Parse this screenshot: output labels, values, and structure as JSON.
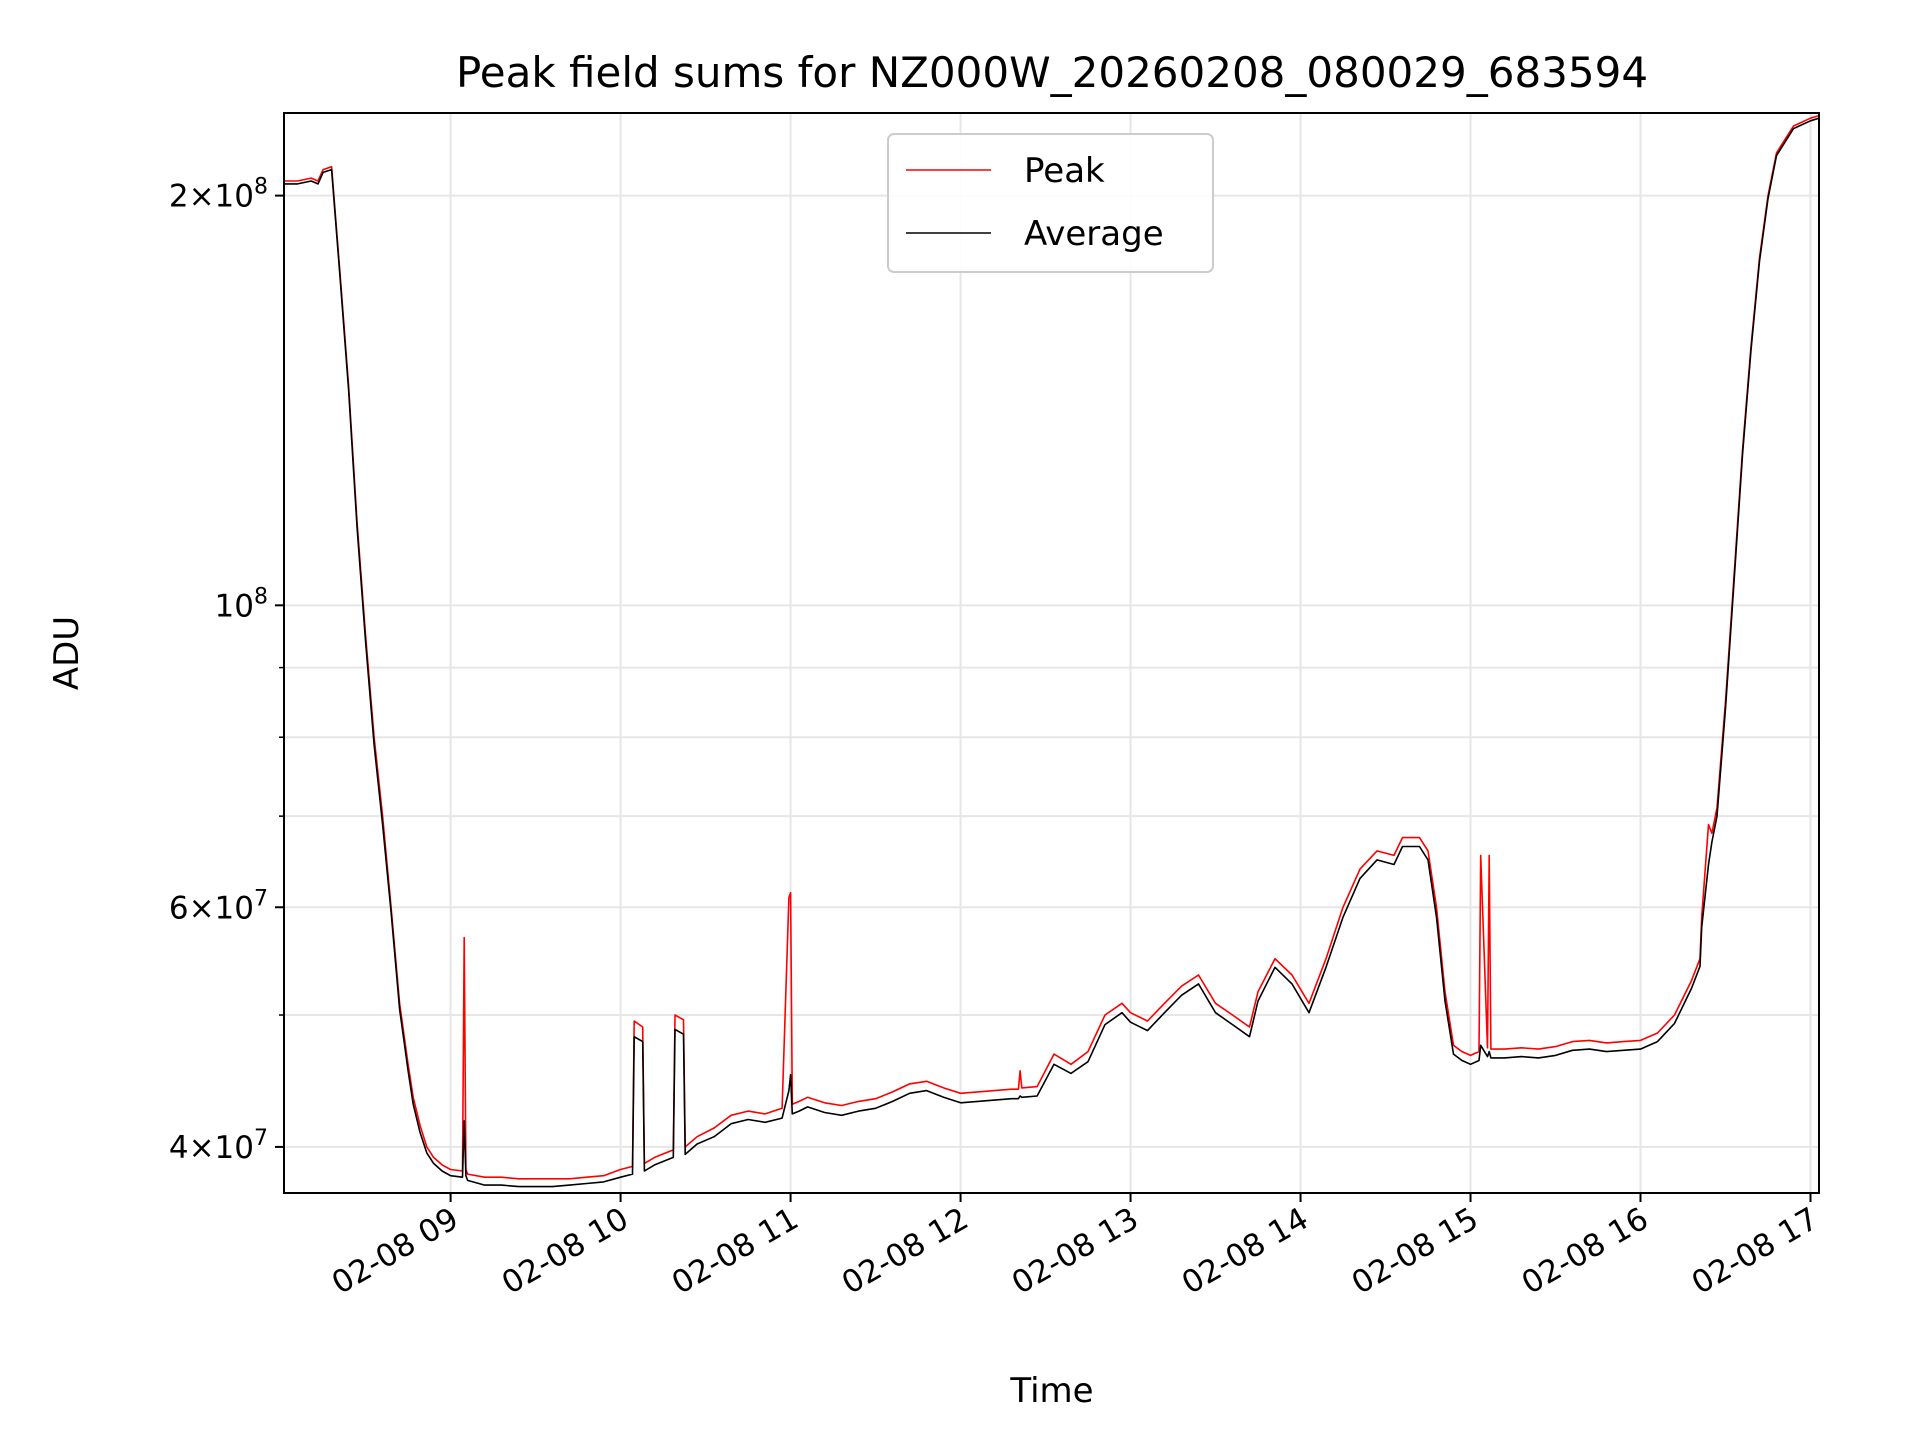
{
  "chart_data": {
    "type": "line",
    "title": "Peak field sums for NZ000W_20260208_080029_683594",
    "xlabel": "Time",
    "ylabel": "ADU",
    "yscale": "log",
    "ylim": [
      37000000,
      230000000
    ],
    "xlim": [
      8.02,
      17.05
    ],
    "x_unit": "hours since 2026-02-08 00:00",
    "x_ticks": [
      {
        "value": 9,
        "label": "02-08 09"
      },
      {
        "value": 10,
        "label": "02-08 10"
      },
      {
        "value": 11,
        "label": "02-08 11"
      },
      {
        "value": 12,
        "label": "02-08 12"
      },
      {
        "value": 13,
        "label": "02-08 13"
      },
      {
        "value": 14,
        "label": "02-08 14"
      },
      {
        "value": 15,
        "label": "02-08 15"
      },
      {
        "value": 16,
        "label": "02-08 16"
      },
      {
        "value": 17,
        "label": "02-08 17"
      }
    ],
    "y_ticks": [
      {
        "value": 40000000,
        "base": "4",
        "exp": "7"
      },
      {
        "value": 60000000,
        "base": "6",
        "exp": "7"
      },
      {
        "value": 100000000,
        "base": "",
        "exp": "8"
      },
      {
        "value": 200000000,
        "base": "2",
        "exp": "8"
      }
    ],
    "y_minor": [
      50000000,
      70000000,
      80000000,
      90000000
    ],
    "grid": true,
    "legend": {
      "placement": "top-center",
      "entries": [
        "Peak",
        "Average"
      ]
    },
    "series": [
      {
        "name": "Peak",
        "color": "#ff0000",
        "x": [
          8.02,
          8.1,
          8.18,
          8.22,
          8.25,
          8.3,
          8.35,
          8.4,
          8.45,
          8.5,
          8.55,
          8.6,
          8.65,
          8.7,
          8.75,
          8.78,
          8.82,
          8.86,
          8.9,
          8.95,
          9.0,
          9.07,
          9.08,
          9.09,
          9.1,
          9.2,
          9.3,
          9.4,
          9.5,
          9.6,
          9.7,
          9.8,
          9.9,
          10.0,
          10.07,
          10.08,
          10.13,
          10.14,
          10.2,
          10.31,
          10.32,
          10.37,
          10.38,
          10.45,
          10.55,
          10.65,
          10.75,
          10.85,
          10.95,
          10.99,
          11.0,
          11.01,
          11.05,
          11.1,
          11.2,
          11.3,
          11.4,
          11.5,
          11.6,
          11.7,
          11.8,
          11.9,
          12.0,
          12.1,
          12.2,
          12.3,
          12.34,
          12.35,
          12.36,
          12.45,
          12.55,
          12.65,
          12.75,
          12.85,
          12.95,
          13.0,
          13.1,
          13.2,
          13.3,
          13.4,
          13.5,
          13.6,
          13.7,
          13.75,
          13.85,
          13.95,
          14.05,
          14.15,
          14.25,
          14.35,
          14.45,
          14.55,
          14.6,
          14.7,
          14.75,
          14.8,
          14.85,
          14.9,
          14.95,
          15.0,
          15.05,
          15.06,
          15.1,
          15.11,
          15.12,
          15.2,
          15.3,
          15.4,
          15.5,
          15.6,
          15.7,
          15.8,
          15.9,
          16.0,
          16.1,
          16.2,
          16.3,
          16.35,
          16.36,
          16.4,
          16.42,
          16.45,
          16.5,
          16.55,
          16.6,
          16.65,
          16.7,
          16.75,
          16.8,
          16.9,
          17.0,
          17.05
        ],
        "values": [
          205000000,
          205000000,
          206000000,
          205000000,
          209000000,
          210000000,
          175000000,
          145000000,
          115000000,
          95000000,
          80000000,
          70000000,
          60000000,
          51000000,
          46000000,
          43500000,
          41500000,
          40000000,
          39300000,
          38800000,
          38500000,
          38400000,
          57000000,
          38500000,
          38200000,
          38000000,
          38000000,
          37900000,
          37900000,
          37900000,
          37900000,
          38000000,
          38100000,
          38500000,
          38700000,
          49500000,
          49000000,
          38900000,
          39300000,
          39800000,
          50000000,
          49600000,
          40000000,
          40700000,
          41300000,
          42200000,
          42500000,
          42300000,
          42700000,
          61000000,
          61500000,
          43000000,
          43200000,
          43500000,
          43100000,
          42900000,
          43200000,
          43400000,
          43900000,
          44500000,
          44700000,
          44200000,
          43800000,
          43900000,
          44000000,
          44100000,
          44100000,
          45500000,
          44200000,
          44300000,
          46800000,
          46000000,
          47000000,
          50000000,
          51000000,
          50200000,
          49500000,
          51000000,
          52500000,
          53500000,
          51000000,
          50000000,
          49000000,
          52000000,
          55000000,
          53500000,
          51000000,
          55000000,
          60000000,
          64000000,
          66000000,
          65500000,
          67500000,
          67500000,
          66000000,
          60000000,
          52000000,
          47500000,
          47000000,
          46700000,
          47000000,
          65500000,
          47300000,
          65500000,
          47200000,
          47200000,
          47300000,
          47200000,
          47400000,
          47800000,
          47900000,
          47700000,
          47800000,
          47900000,
          48500000,
          50000000,
          53000000,
          55000000,
          59000000,
          69000000,
          68000000,
          71000000,
          85000000,
          105000000,
          130000000,
          155000000,
          180000000,
          200000000,
          215000000,
          225000000,
          228000000,
          229000000
        ]
      },
      {
        "name": "Average",
        "color": "#000000",
        "x": [
          8.02,
          8.1,
          8.18,
          8.22,
          8.25,
          8.3,
          8.35,
          8.4,
          8.45,
          8.5,
          8.55,
          8.6,
          8.65,
          8.7,
          8.75,
          8.78,
          8.82,
          8.86,
          8.9,
          8.95,
          9.0,
          9.07,
          9.08,
          9.09,
          9.1,
          9.2,
          9.3,
          9.4,
          9.5,
          9.6,
          9.7,
          9.8,
          9.9,
          10.0,
          10.07,
          10.08,
          10.13,
          10.14,
          10.2,
          10.31,
          10.32,
          10.37,
          10.38,
          10.45,
          10.55,
          10.65,
          10.75,
          10.85,
          10.95,
          10.99,
          11.0,
          11.01,
          11.05,
          11.1,
          11.2,
          11.3,
          11.4,
          11.5,
          11.6,
          11.7,
          11.8,
          11.9,
          12.0,
          12.1,
          12.2,
          12.3,
          12.34,
          12.35,
          12.36,
          12.45,
          12.55,
          12.65,
          12.75,
          12.85,
          12.95,
          13.0,
          13.1,
          13.2,
          13.3,
          13.4,
          13.5,
          13.6,
          13.7,
          13.75,
          13.85,
          13.95,
          14.05,
          14.15,
          14.25,
          14.35,
          14.45,
          14.55,
          14.6,
          14.7,
          14.75,
          14.8,
          14.85,
          14.9,
          14.95,
          15.0,
          15.05,
          15.06,
          15.1,
          15.11,
          15.12,
          15.2,
          15.3,
          15.4,
          15.5,
          15.6,
          15.7,
          15.8,
          15.9,
          16.0,
          16.1,
          16.2,
          16.3,
          16.35,
          16.36,
          16.4,
          16.42,
          16.45,
          16.5,
          16.55,
          16.6,
          16.65,
          16.7,
          16.75,
          16.8,
          16.9,
          17.0,
          17.05
        ],
        "values": [
          204000000,
          204000000,
          205000000,
          204000000,
          208000000,
          209000000,
          174000000,
          144000000,
          114000000,
          94000000,
          79000000,
          69000000,
          59500000,
          50500000,
          45500000,
          43000000,
          41000000,
          39600000,
          38900000,
          38400000,
          38100000,
          38000000,
          41800000,
          38100000,
          37800000,
          37500000,
          37500000,
          37400000,
          37400000,
          37400000,
          37500000,
          37600000,
          37700000,
          38000000,
          38200000,
          48200000,
          47800000,
          38400000,
          38800000,
          39300000,
          48800000,
          48400000,
          39500000,
          40200000,
          40700000,
          41600000,
          41900000,
          41700000,
          42000000,
          44000000,
          45200000,
          42300000,
          42500000,
          42800000,
          42400000,
          42200000,
          42500000,
          42700000,
          43200000,
          43800000,
          44000000,
          43500000,
          43100000,
          43200000,
          43300000,
          43400000,
          43400000,
          43600000,
          43500000,
          43600000,
          46000000,
          45300000,
          46200000,
          49200000,
          50200000,
          49400000,
          48700000,
          50200000,
          51700000,
          52700000,
          50200000,
          49200000,
          48200000,
          51200000,
          54200000,
          52700000,
          50200000,
          54200000,
          59000000,
          63000000,
          65000000,
          64500000,
          66500000,
          66500000,
          65000000,
          59000000,
          51200000,
          46800000,
          46300000,
          46000000,
          46300000,
          47500000,
          46600000,
          47000000,
          46500000,
          46500000,
          46600000,
          46500000,
          46700000,
          47100000,
          47200000,
          47000000,
          47100000,
          47200000,
          47800000,
          49300000,
          52300000,
          54300000,
          58000000,
          64500000,
          67000000,
          70000000,
          84000000,
          104000000,
          129000000,
          154000000,
          179000000,
          199000000,
          214000000,
          224000000,
          227000000,
          228000000
        ]
      }
    ]
  }
}
